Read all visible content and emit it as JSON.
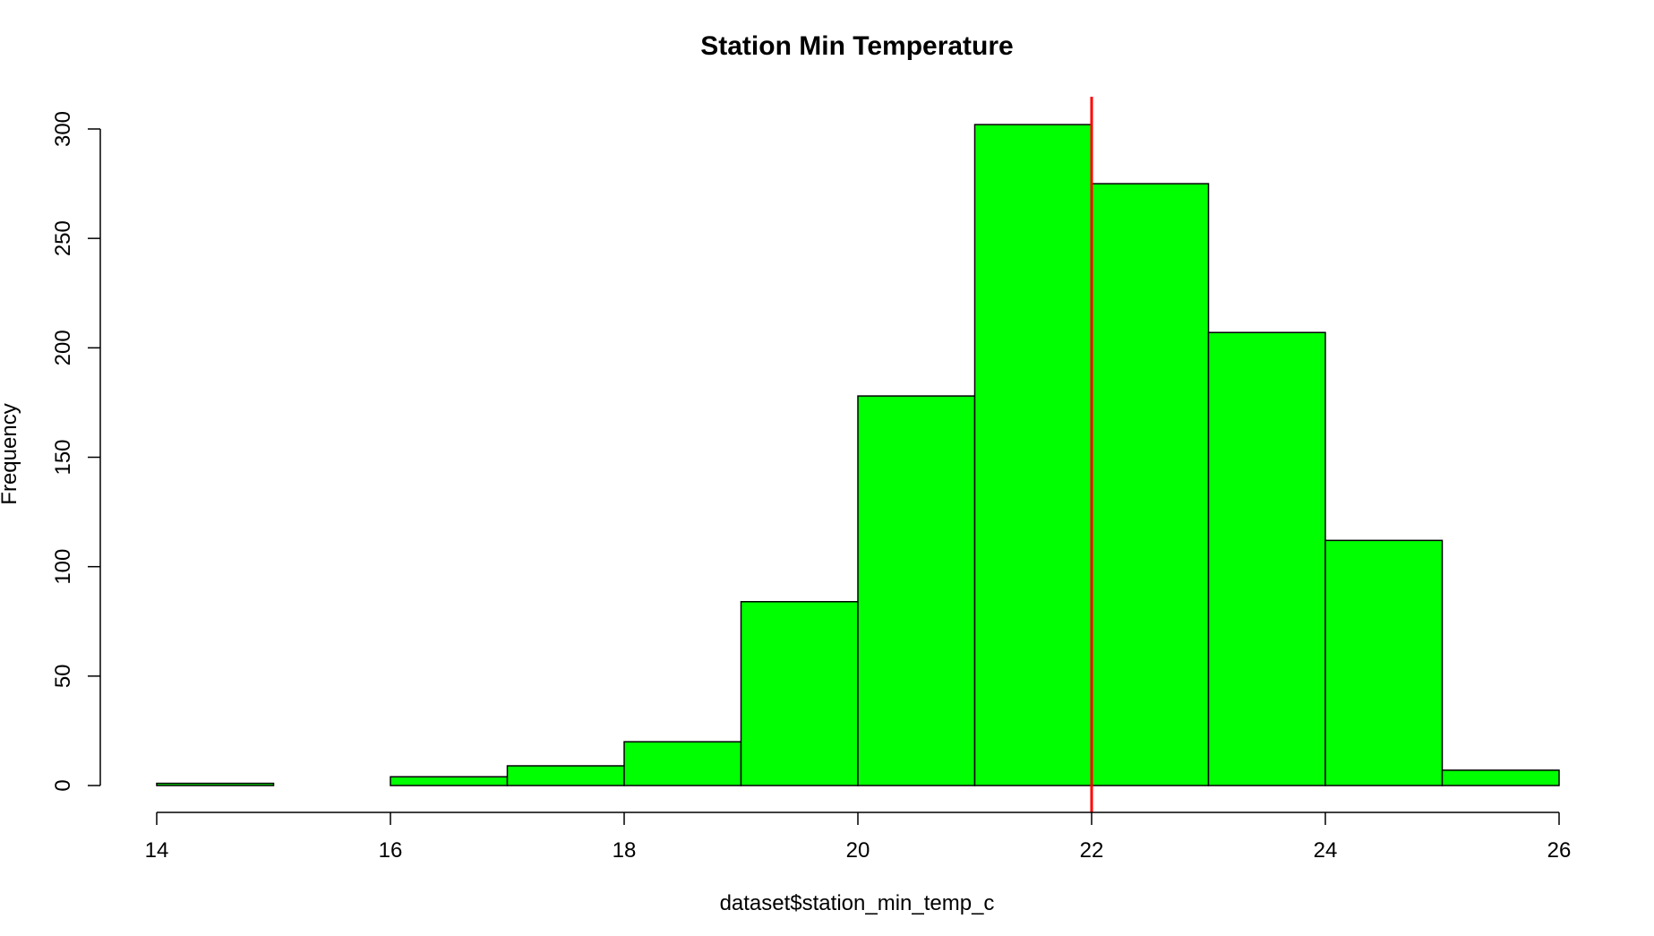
{
  "chart_data": {
    "type": "bar",
    "subtype": "histogram",
    "title": "Station Min Temperature",
    "xlabel": "dataset$station_min_temp_c",
    "ylabel": "Frequency",
    "bins": [
      {
        "x0": 14,
        "x1": 15,
        "count": 1
      },
      {
        "x0": 15,
        "x1": 16,
        "count": 0
      },
      {
        "x0": 16,
        "x1": 17,
        "count": 4
      },
      {
        "x0": 17,
        "x1": 18,
        "count": 9
      },
      {
        "x0": 18,
        "x1": 19,
        "count": 20
      },
      {
        "x0": 19,
        "x1": 20,
        "count": 84
      },
      {
        "x0": 20,
        "x1": 21,
        "count": 178
      },
      {
        "x0": 21,
        "x1": 22,
        "count": 302
      },
      {
        "x0": 22,
        "x1": 23,
        "count": 275
      },
      {
        "x0": 23,
        "x1": 24,
        "count": 207
      },
      {
        "x0": 24,
        "x1": 25,
        "count": 112
      },
      {
        "x0": 25,
        "x1": 26,
        "count": 7
      }
    ],
    "xlim": [
      14,
      26
    ],
    "ylim": [
      0,
      300
    ],
    "xticks": [
      14,
      16,
      18,
      20,
      22,
      24,
      26
    ],
    "yticks": [
      0,
      50,
      100,
      150,
      200,
      250,
      300
    ],
    "bar_color": "#00ff00",
    "bar_border_color": "#000000",
    "reference_line": {
      "x": 22,
      "color": "#ff0000"
    },
    "grid": false,
    "legend": "none"
  }
}
